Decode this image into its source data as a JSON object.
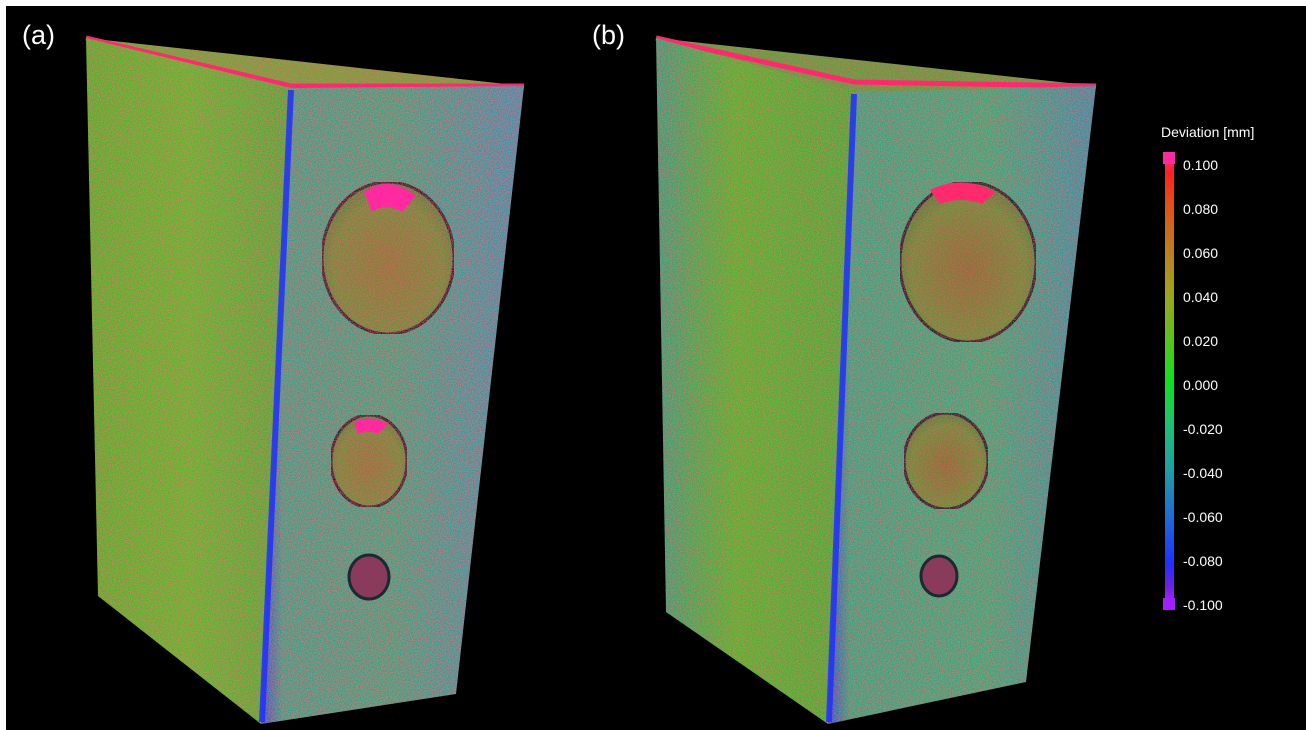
{
  "panels": [
    {
      "label": "(a)"
    },
    {
      "label": "(b)"
    }
  ],
  "legend": {
    "title": "Deviation [mm]",
    "ticks": [
      "0.100",
      "0.080",
      "0.060",
      "0.040",
      "0.020",
      "0.000",
      "-0.020",
      "-0.040",
      "-0.060",
      "-0.080",
      "-0.100"
    ],
    "colors": {
      "max": "#ff2aa0",
      "high": "#ff2020",
      "mid": "#10e020",
      "low": "#2030ff",
      "min": "#a020ff"
    }
  }
}
